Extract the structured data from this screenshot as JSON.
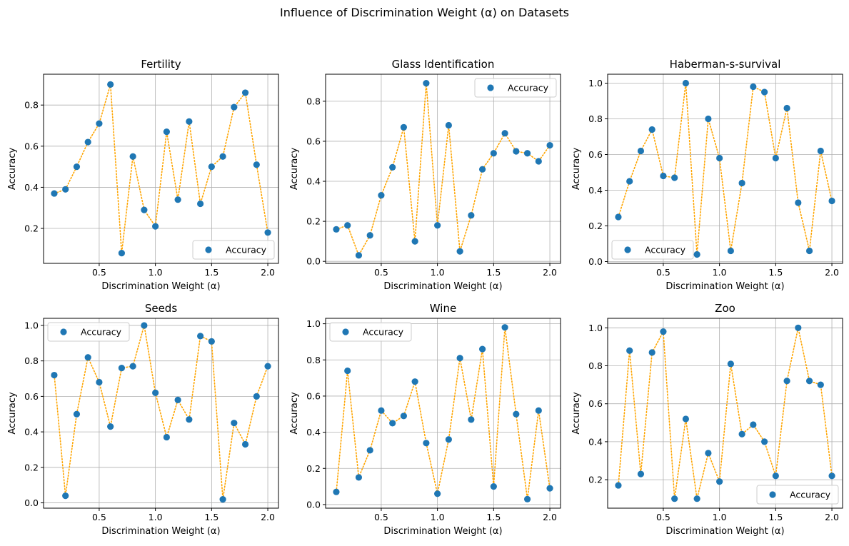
{
  "figure": {
    "suptitle": "Influence of Discrimination Weight (α) on Datasets"
  },
  "colors": {
    "marker": "#1f77b4",
    "line": "#ffa500",
    "grid": "#b0b0b0",
    "axes": "#000000"
  },
  "chart_data": [
    {
      "type": "scatter",
      "title": "Fertility",
      "xlabel": "Discrimination Weight (α)",
      "ylabel": "Accuracy",
      "grid": true,
      "legend": {
        "placement": "lower-right",
        "entries": [
          "Accuracy"
        ]
      },
      "xlim": [
        0.005,
        2.095
      ],
      "ylim": [
        0.03,
        0.95
      ],
      "xticks": [
        0.5,
        1.0,
        1.5,
        2.0
      ],
      "xtick_labels": [
        "0.5",
        "1.0",
        "1.5",
        "2.0"
      ],
      "yticks": [
        0.2,
        0.4,
        0.6,
        0.8
      ],
      "ytick_labels": [
        "0.2",
        "0.4",
        "0.6",
        "0.8"
      ],
      "x": [
        0.1,
        0.2,
        0.3,
        0.4,
        0.5,
        0.6,
        0.7,
        0.8,
        0.9,
        1.0,
        1.1,
        1.2,
        1.3,
        1.4,
        1.5,
        1.6,
        1.7,
        1.8,
        1.9,
        2.0
      ],
      "series": [
        {
          "name": "Accuracy",
          "values": [
            0.37,
            0.39,
            0.5,
            0.62,
            0.71,
            0.9,
            0.08,
            0.55,
            0.29,
            0.21,
            0.67,
            0.34,
            0.72,
            0.32,
            0.5,
            0.55,
            0.79,
            0.86,
            0.51,
            0.18
          ]
        }
      ]
    },
    {
      "type": "scatter",
      "title": "Glass Identification",
      "xlabel": "Discrimination Weight (α)",
      "ylabel": "Accuracy",
      "grid": true,
      "legend": {
        "placement": "upper-right",
        "entries": [
          "Accuracy"
        ]
      },
      "xlim": [
        0.005,
        2.095
      ],
      "ylim": [
        -0.01,
        0.935
      ],
      "xticks": [
        0.5,
        1.0,
        1.5,
        2.0
      ],
      "xtick_labels": [
        "0.5",
        "1.0",
        "1.5",
        "2.0"
      ],
      "yticks": [
        0.0,
        0.2,
        0.4,
        0.6,
        0.8
      ],
      "ytick_labels": [
        "0.0",
        "0.2",
        "0.4",
        "0.6",
        "0.8"
      ],
      "x": [
        0.1,
        0.2,
        0.3,
        0.4,
        0.5,
        0.6,
        0.7,
        0.8,
        0.9,
        1.0,
        1.1,
        1.2,
        1.3,
        1.4,
        1.5,
        1.6,
        1.7,
        1.8,
        1.9,
        2.0
      ],
      "series": [
        {
          "name": "Accuracy",
          "values": [
            0.16,
            0.18,
            0.03,
            0.13,
            0.33,
            0.47,
            0.67,
            0.1,
            0.89,
            0.18,
            0.68,
            0.05,
            0.23,
            0.46,
            0.54,
            0.64,
            0.55,
            0.54,
            0.5,
            0.58
          ]
        }
      ]
    },
    {
      "type": "scatter",
      "title": "Haberman-s-survival",
      "xlabel": "Discrimination Weight (α)",
      "ylabel": "Accuracy",
      "grid": true,
      "legend": {
        "placement": "lower-left",
        "entries": [
          "Accuracy"
        ]
      },
      "xlim": [
        0.005,
        2.095
      ],
      "ylim": [
        -0.01,
        1.05
      ],
      "xticks": [
        0.5,
        1.0,
        1.5,
        2.0
      ],
      "xtick_labels": [
        "0.5",
        "1.0",
        "1.5",
        "2.0"
      ],
      "yticks": [
        0.0,
        0.2,
        0.4,
        0.6,
        0.8,
        1.0
      ],
      "ytick_labels": [
        "0.0",
        "0.2",
        "0.4",
        "0.6",
        "0.8",
        "1.0"
      ],
      "x": [
        0.1,
        0.2,
        0.3,
        0.4,
        0.5,
        0.6,
        0.7,
        0.8,
        0.9,
        1.0,
        1.1,
        1.2,
        1.3,
        1.4,
        1.5,
        1.6,
        1.7,
        1.8,
        1.9,
        2.0
      ],
      "series": [
        {
          "name": "Accuracy",
          "values": [
            0.25,
            0.45,
            0.62,
            0.74,
            0.48,
            0.47,
            1.0,
            0.04,
            0.8,
            0.58,
            0.06,
            0.44,
            0.98,
            0.95,
            0.58,
            0.86,
            0.33,
            0.06,
            0.62,
            0.34
          ]
        }
      ]
    },
    {
      "type": "scatter",
      "title": "Seeds",
      "xlabel": "Discrimination Weight (α)",
      "ylabel": "Accuracy",
      "grid": true,
      "legend": {
        "placement": "upper-left",
        "entries": [
          "Accuracy"
        ]
      },
      "xlim": [
        0.005,
        2.095
      ],
      "ylim": [
        -0.03,
        1.04
      ],
      "xticks": [
        0.5,
        1.0,
        1.5,
        2.0
      ],
      "xtick_labels": [
        "0.5",
        "1.0",
        "1.5",
        "2.0"
      ],
      "yticks": [
        0.0,
        0.2,
        0.4,
        0.6,
        0.8,
        1.0
      ],
      "ytick_labels": [
        "0.0",
        "0.2",
        "0.4",
        "0.6",
        "0.8",
        "1.0"
      ],
      "x": [
        0.1,
        0.2,
        0.3,
        0.4,
        0.5,
        0.6,
        0.7,
        0.8,
        0.9,
        1.0,
        1.1,
        1.2,
        1.3,
        1.4,
        1.5,
        1.6,
        1.7,
        1.8,
        1.9,
        2.0
      ],
      "series": [
        {
          "name": "Accuracy",
          "values": [
            0.72,
            0.04,
            0.5,
            0.82,
            0.68,
            0.43,
            0.76,
            0.77,
            1.0,
            0.62,
            0.37,
            0.58,
            0.47,
            0.94,
            0.91,
            0.02,
            0.45,
            0.33,
            0.6,
            0.77
          ]
        }
      ]
    },
    {
      "type": "scatter",
      "title": "Wine",
      "xlabel": "Discrimination Weight (α)",
      "ylabel": "Accuracy",
      "grid": true,
      "legend": {
        "placement": "upper-left",
        "entries": [
          "Accuracy"
        ]
      },
      "xlim": [
        0.005,
        2.095
      ],
      "ylim": [
        -0.02,
        1.03
      ],
      "xticks": [
        0.5,
        1.0,
        1.5,
        2.0
      ],
      "xtick_labels": [
        "0.5",
        "1.0",
        "1.5",
        "2.0"
      ],
      "yticks": [
        0.0,
        0.2,
        0.4,
        0.6,
        0.8,
        1.0
      ],
      "ytick_labels": [
        "0.0",
        "0.2",
        "0.4",
        "0.6",
        "0.8",
        "1.0"
      ],
      "x": [
        0.1,
        0.2,
        0.3,
        0.4,
        0.5,
        0.6,
        0.7,
        0.8,
        0.9,
        1.0,
        1.1,
        1.2,
        1.3,
        1.4,
        1.5,
        1.6,
        1.7,
        1.8,
        1.9,
        2.0
      ],
      "series": [
        {
          "name": "Accuracy",
          "values": [
            0.07,
            0.74,
            0.15,
            0.3,
            0.52,
            0.45,
            0.49,
            0.68,
            0.34,
            0.06,
            0.36,
            0.81,
            0.47,
            0.86,
            0.1,
            0.98,
            0.5,
            0.03,
            0.52,
            0.09
          ]
        }
      ]
    },
    {
      "type": "scatter",
      "title": "Zoo",
      "xlabel": "Discrimination Weight (α)",
      "ylabel": "Accuracy",
      "grid": true,
      "legend": {
        "placement": "lower-right",
        "entries": [
          "Accuracy"
        ]
      },
      "xlim": [
        0.005,
        2.095
      ],
      "ylim": [
        0.05,
        1.05
      ],
      "xticks": [
        0.5,
        1.0,
        1.5,
        2.0
      ],
      "xtick_labels": [
        "0.5",
        "1.0",
        "1.5",
        "2.0"
      ],
      "yticks": [
        0.2,
        0.4,
        0.6,
        0.8,
        1.0
      ],
      "ytick_labels": [
        "0.2",
        "0.4",
        "0.6",
        "0.8",
        "1.0"
      ],
      "x": [
        0.1,
        0.2,
        0.3,
        0.4,
        0.5,
        0.6,
        0.7,
        0.8,
        0.9,
        1.0,
        1.1,
        1.2,
        1.3,
        1.4,
        1.5,
        1.6,
        1.7,
        1.8,
        1.9,
        2.0
      ],
      "series": [
        {
          "name": "Accuracy",
          "values": [
            0.17,
            0.88,
            0.23,
            0.87,
            0.98,
            0.1,
            0.52,
            0.1,
            0.34,
            0.19,
            0.81,
            0.44,
            0.49,
            0.4,
            0.22,
            0.72,
            1.0,
            0.72,
            0.7,
            0.22
          ]
        }
      ]
    }
  ]
}
